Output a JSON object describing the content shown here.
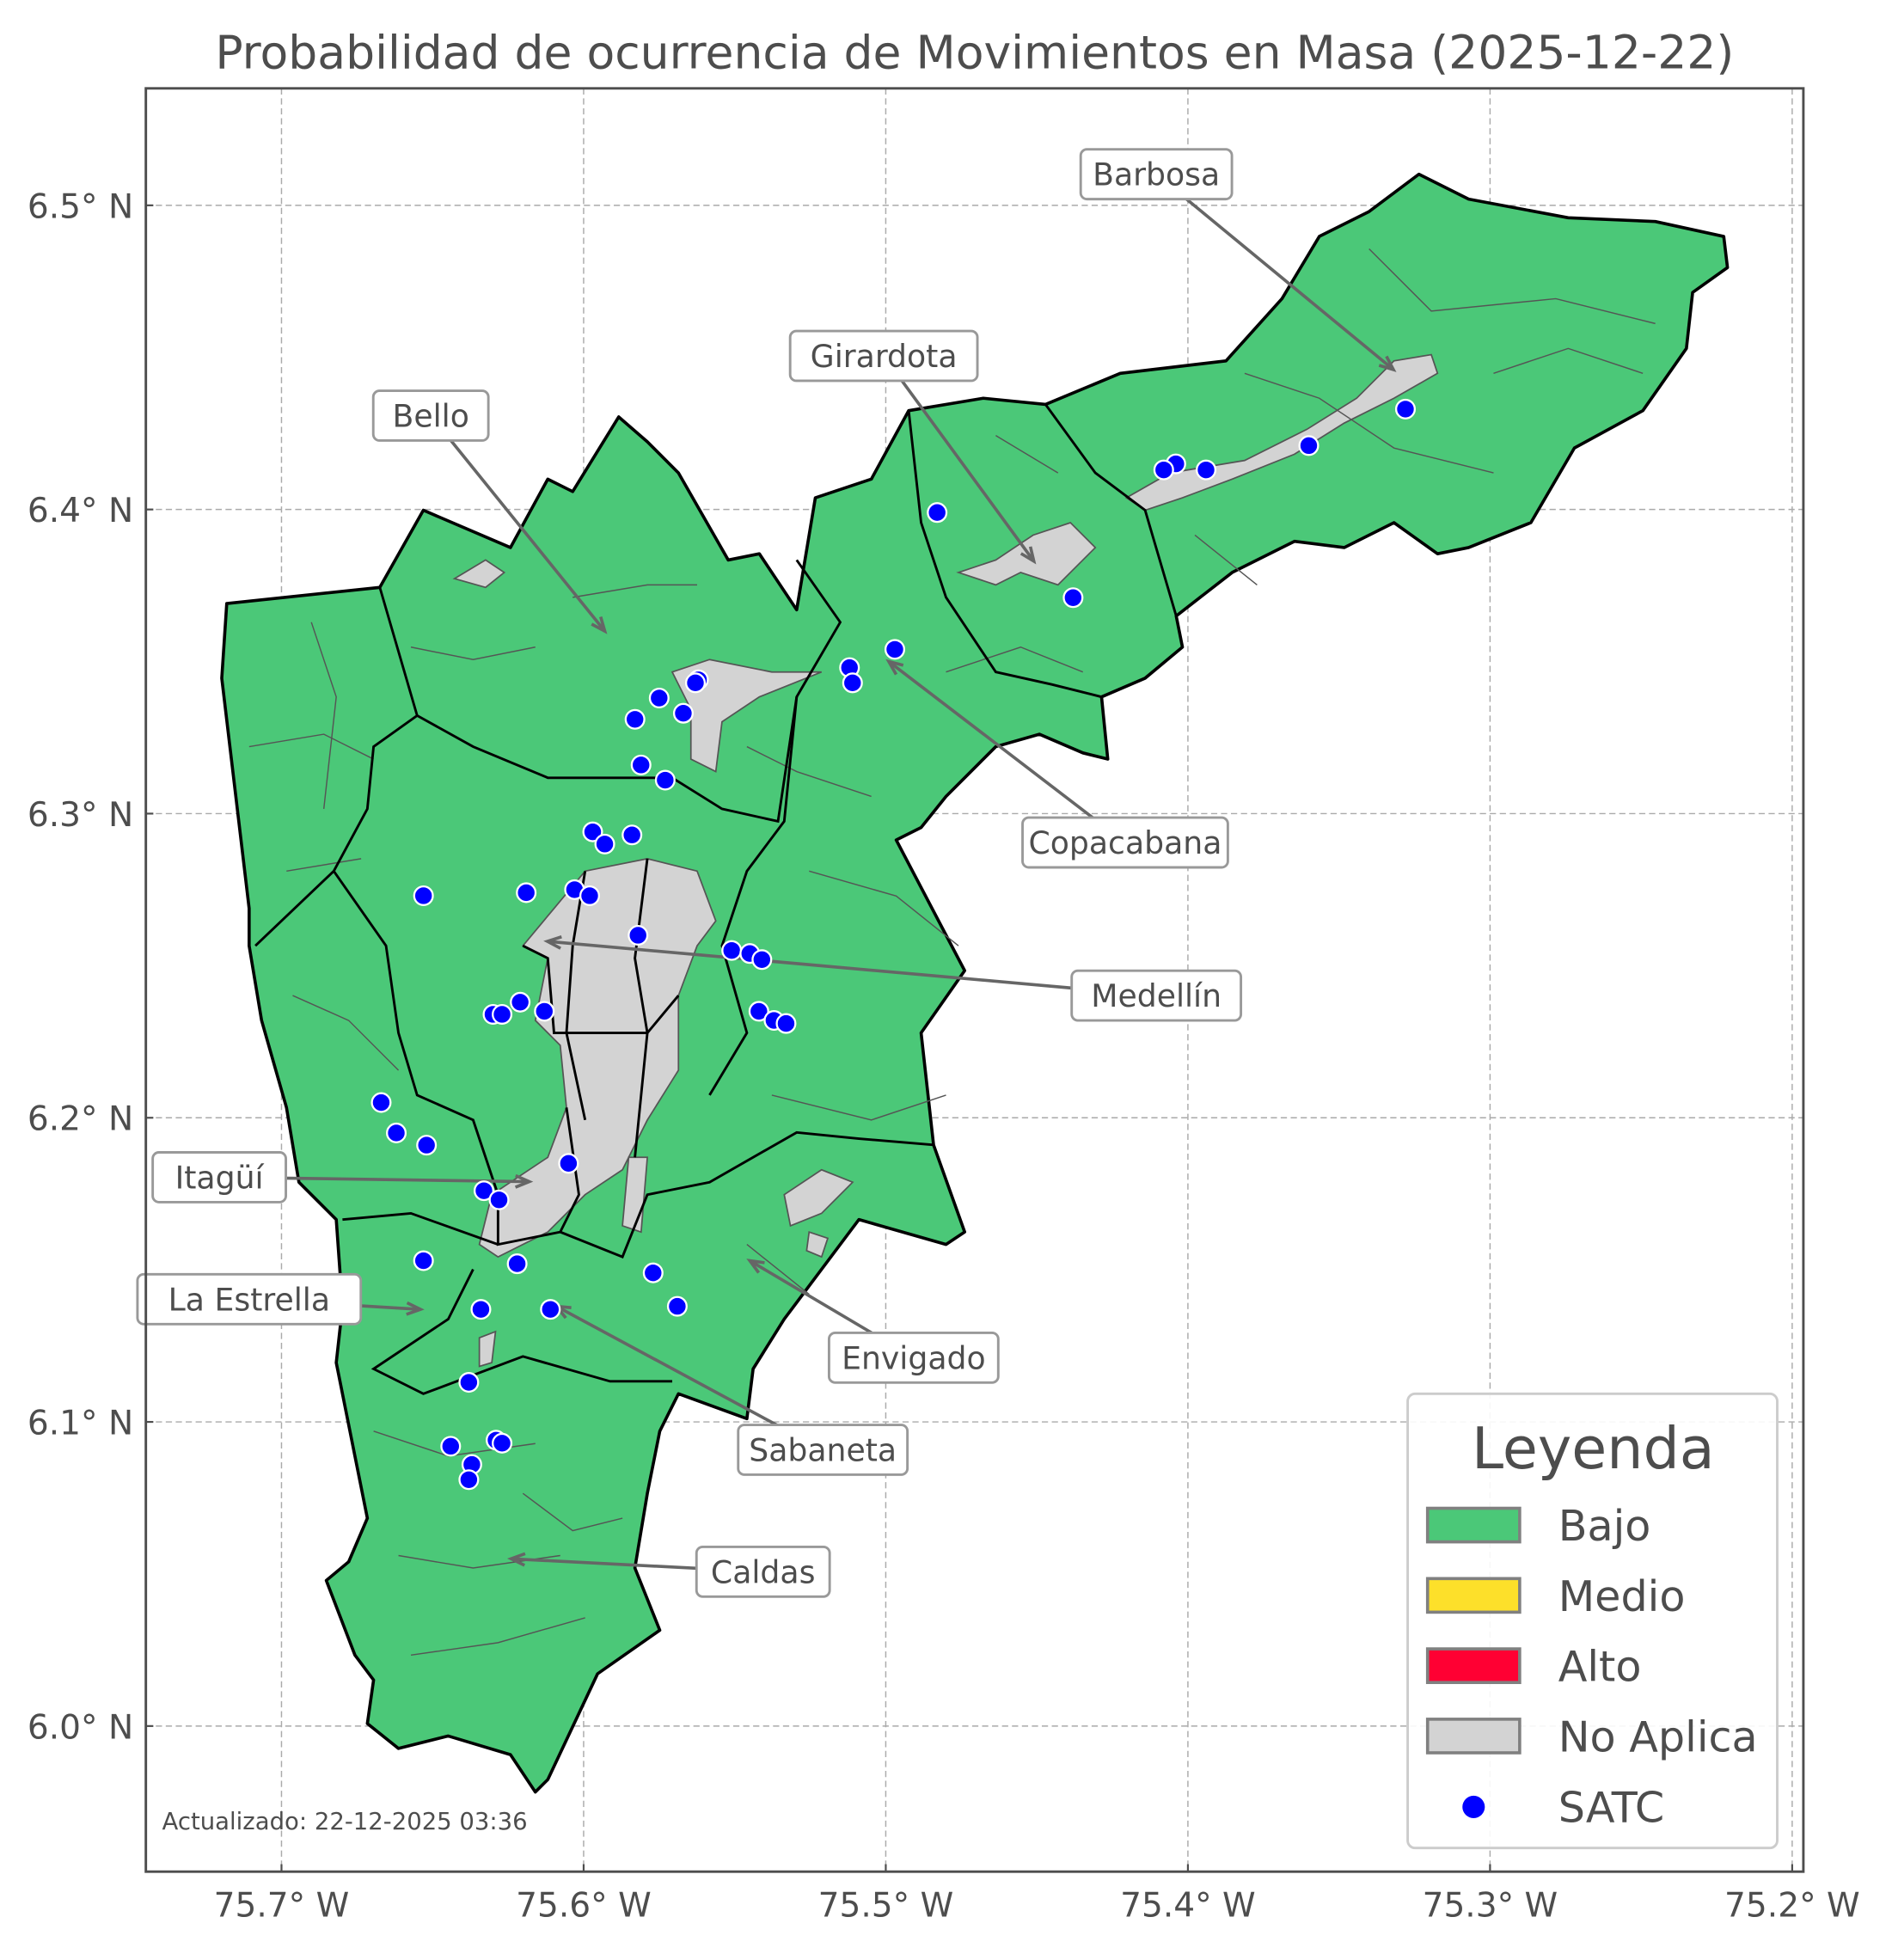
{
  "title": "Probabilidad de ocurrencia de Movimientos en Masa (2025-12-22)",
  "updated_note": "Actualizado: 22-12-2025 03:36",
  "chart_data": {
    "type": "map",
    "xlim": [
      -75.746,
      -75.197
    ],
    "ylim": [
      5.953,
      6.537
    ],
    "grid": true,
    "x_ticks": [
      {
        "value": -75.7,
        "label": "75.7° W"
      },
      {
        "value": -75.6,
        "label": "75.6° W"
      },
      {
        "value": -75.5,
        "label": "75.5° W"
      },
      {
        "value": -75.4,
        "label": "75.4° W"
      },
      {
        "value": -75.3,
        "label": "75.3° W"
      },
      {
        "value": -75.2,
        "label": "75.2° W"
      }
    ],
    "y_ticks": [
      {
        "value": 6.5,
        "label": "6.5° N"
      },
      {
        "value": 6.4,
        "label": "6.4° N"
      },
      {
        "value": 6.3,
        "label": "6.3° N"
      },
      {
        "value": 6.2,
        "label": "6.2° N"
      },
      {
        "value": 6.1,
        "label": "6.1° N"
      },
      {
        "value": 6.0,
        "label": "6.0° N"
      }
    ],
    "region_fill_category": "Bajo",
    "annotations": [
      {
        "label": "Barbosa",
        "lon": -75.332,
        "lat": 6.446
      },
      {
        "label": "Girardota",
        "lon": -75.451,
        "lat": 6.383
      },
      {
        "label": "Bello",
        "lon": -75.593,
        "lat": 6.36
      },
      {
        "label": "Copacabana",
        "lon": -75.499,
        "lat": 6.35
      },
      {
        "label": "Medellín",
        "lon": -75.612,
        "lat": 6.258
      },
      {
        "label": "Itagüí",
        "lon": -75.618,
        "lat": 6.179
      },
      {
        "label": "La Estrella",
        "lon": -75.654,
        "lat": 6.137
      },
      {
        "label": "Envigado",
        "lon": -75.545,
        "lat": 6.153
      },
      {
        "label": "Sabaneta",
        "lon": -75.609,
        "lat": 6.138
      },
      {
        "label": "Caldas",
        "lon": -75.624,
        "lat": 6.055
      }
    ],
    "satc_points": [
      [
        -75.328,
        6.433
      ],
      [
        -75.36,
        6.421
      ],
      [
        -75.394,
        6.413
      ],
      [
        -75.404,
        6.415
      ],
      [
        -75.408,
        6.413
      ],
      [
        -75.483,
        6.399
      ],
      [
        -75.438,
        6.371
      ],
      [
        -75.497,
        6.354
      ],
      [
        -75.512,
        6.348
      ],
      [
        -75.511,
        6.343
      ],
      [
        -75.562,
        6.344
      ],
      [
        -75.563,
        6.343
      ],
      [
        -75.567,
        6.333
      ],
      [
        -75.575,
        6.338
      ],
      [
        -75.583,
        6.331
      ],
      [
        -75.581,
        6.316
      ],
      [
        -75.573,
        6.311
      ],
      [
        -75.597,
        6.294
      ],
      [
        -75.593,
        6.29
      ],
      [
        -75.584,
        6.293
      ],
      [
        -75.653,
        6.273
      ],
      [
        -75.619,
        6.274
      ],
      [
        -75.603,
        6.275
      ],
      [
        -75.598,
        6.273
      ],
      [
        -75.582,
        6.26
      ],
      [
        -75.551,
        6.255
      ],
      [
        -75.545,
        6.254
      ],
      [
        -75.541,
        6.252
      ],
      [
        -75.542,
        6.235
      ],
      [
        -75.537,
        6.232
      ],
      [
        -75.533,
        6.231
      ],
      [
        -75.621,
        6.238
      ],
      [
        -75.613,
        6.235
      ],
      [
        -75.63,
        6.234
      ],
      [
        -75.627,
        6.234
      ],
      [
        -75.667,
        6.205
      ],
      [
        -75.662,
        6.195
      ],
      [
        -75.652,
        6.191
      ],
      [
        -75.605,
        6.185
      ],
      [
        -75.633,
        6.176
      ],
      [
        -75.628,
        6.173
      ],
      [
        -75.653,
        6.153
      ],
      [
        -75.622,
        6.152
      ],
      [
        -75.577,
        6.149
      ],
      [
        -75.569,
        6.138
      ],
      [
        -75.634,
        6.137
      ],
      [
        -75.611,
        6.137
      ],
      [
        -75.638,
        6.113
      ],
      [
        -75.644,
        6.092
      ],
      [
        -75.629,
        6.094
      ],
      [
        -75.627,
        6.093
      ],
      [
        -75.637,
        6.086
      ],
      [
        -75.638,
        6.081
      ]
    ]
  },
  "legend": {
    "title": "Leyenda",
    "items": [
      {
        "label": "Bajo",
        "color": "#4bc878",
        "kind": "patch"
      },
      {
        "label": "Medio",
        "color": "#fde02a",
        "kind": "patch"
      },
      {
        "label": "Alto",
        "color": "#ff0033",
        "kind": "patch"
      },
      {
        "label": "No Aplica",
        "color": "#d3d3d3",
        "kind": "patch"
      },
      {
        "label": "SATC",
        "color": "#0000ff",
        "kind": "marker"
      }
    ]
  }
}
